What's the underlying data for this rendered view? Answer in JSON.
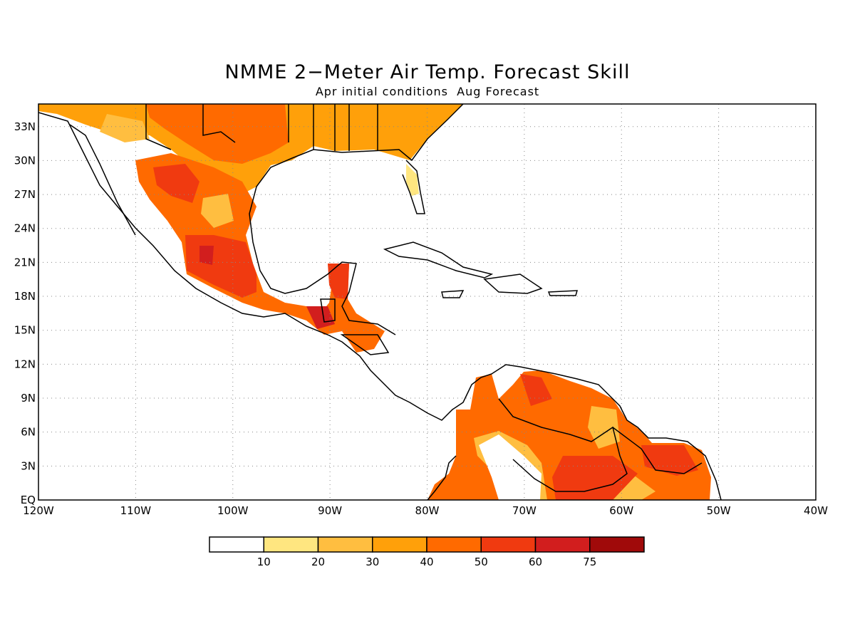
{
  "title": "NMME 2−Meter Air Temp. Forecast Skill",
  "subtitle": "Apr initial conditions  Aug Forecast",
  "map": {
    "lon_range": [
      -120,
      -40
    ],
    "lat_range": [
      0,
      35
    ],
    "lon_tick_labels": [
      "120W",
      "110W",
      "100W",
      "90W",
      "80W",
      "70W",
      "60W",
      "50W",
      "40W"
    ],
    "lat_tick_labels": [
      "EQ",
      "3N",
      "6N",
      "9N",
      "12N",
      "15N",
      "18N",
      "21N",
      "24N",
      "27N",
      "30N",
      "33N"
    ],
    "grid": "dotted"
  },
  "legend": {
    "levels": [
      "10",
      "20",
      "30",
      "40",
      "50",
      "60",
      "75"
    ],
    "colors": [
      "#ffffff",
      "#ffe680",
      "#ffbe40",
      "#ffa00a",
      "#ff6a00",
      "#f03a10",
      "#d21e1e",
      "#a00a0a"
    ]
  }
}
